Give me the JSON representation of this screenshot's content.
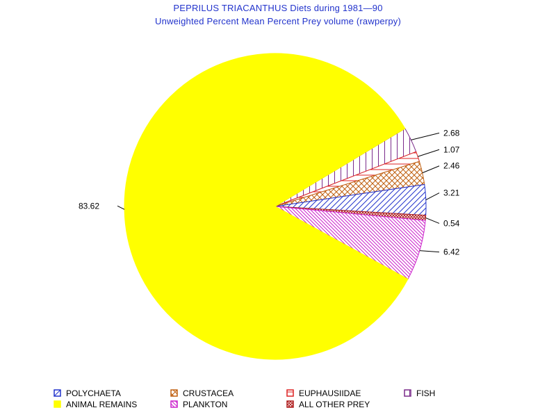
{
  "title": "PEPRILUS TRIACANTHUS Diets during 1981—90",
  "subtitle": "Unweighted Percent Mean Percent Prey  volume (rawperpy)",
  "chart_data": {
    "type": "pie",
    "title": "PEPRILUS TRIACANTHUS Diets during 1981—90",
    "subtitle": "Unweighted Percent Mean Percent Prey  volume (rawperpy)",
    "slices": [
      {
        "label": "FISH",
        "value": 2.68,
        "label_text": "2.68",
        "color": "#7a2a8a",
        "pattern": "vertical"
      },
      {
        "label": "EUPHAUSIIDAE",
        "value": 1.07,
        "label_text": "1.07",
        "color": "#dd2222",
        "pattern": "horizontal"
      },
      {
        "label": "CRUSTACEA",
        "value": 2.46,
        "label_text": "2.46",
        "color": "#c06010",
        "pattern": "crosshatch"
      },
      {
        "label": "POLYCHAETA",
        "value": 3.21,
        "label_text": "3.21",
        "color": "#2233cc",
        "pattern": "diagonal"
      },
      {
        "label": "ALL OTHER PREY",
        "value": 0.54,
        "label_text": "0.54",
        "color": "#b02020",
        "pattern": "crosshatch-dense"
      },
      {
        "label": "PLANKTON",
        "value": 6.42,
        "label_text": "6.42",
        "color": "#cc22cc",
        "pattern": "diagonal-down"
      },
      {
        "label": "ANIMAL REMAINS",
        "value": 83.62,
        "label_text": "83.62",
        "color": "#ffff00",
        "pattern": "solid"
      }
    ],
    "legend": {
      "placement": "bottom",
      "rows": [
        [
          "POLYCHAETA",
          "CRUSTACEA",
          "EUPHAUSIIDAE",
          "FISH"
        ],
        [
          "ANIMAL REMAINS",
          "PLANKTON",
          "ALL OTHER PREY"
        ]
      ]
    }
  }
}
